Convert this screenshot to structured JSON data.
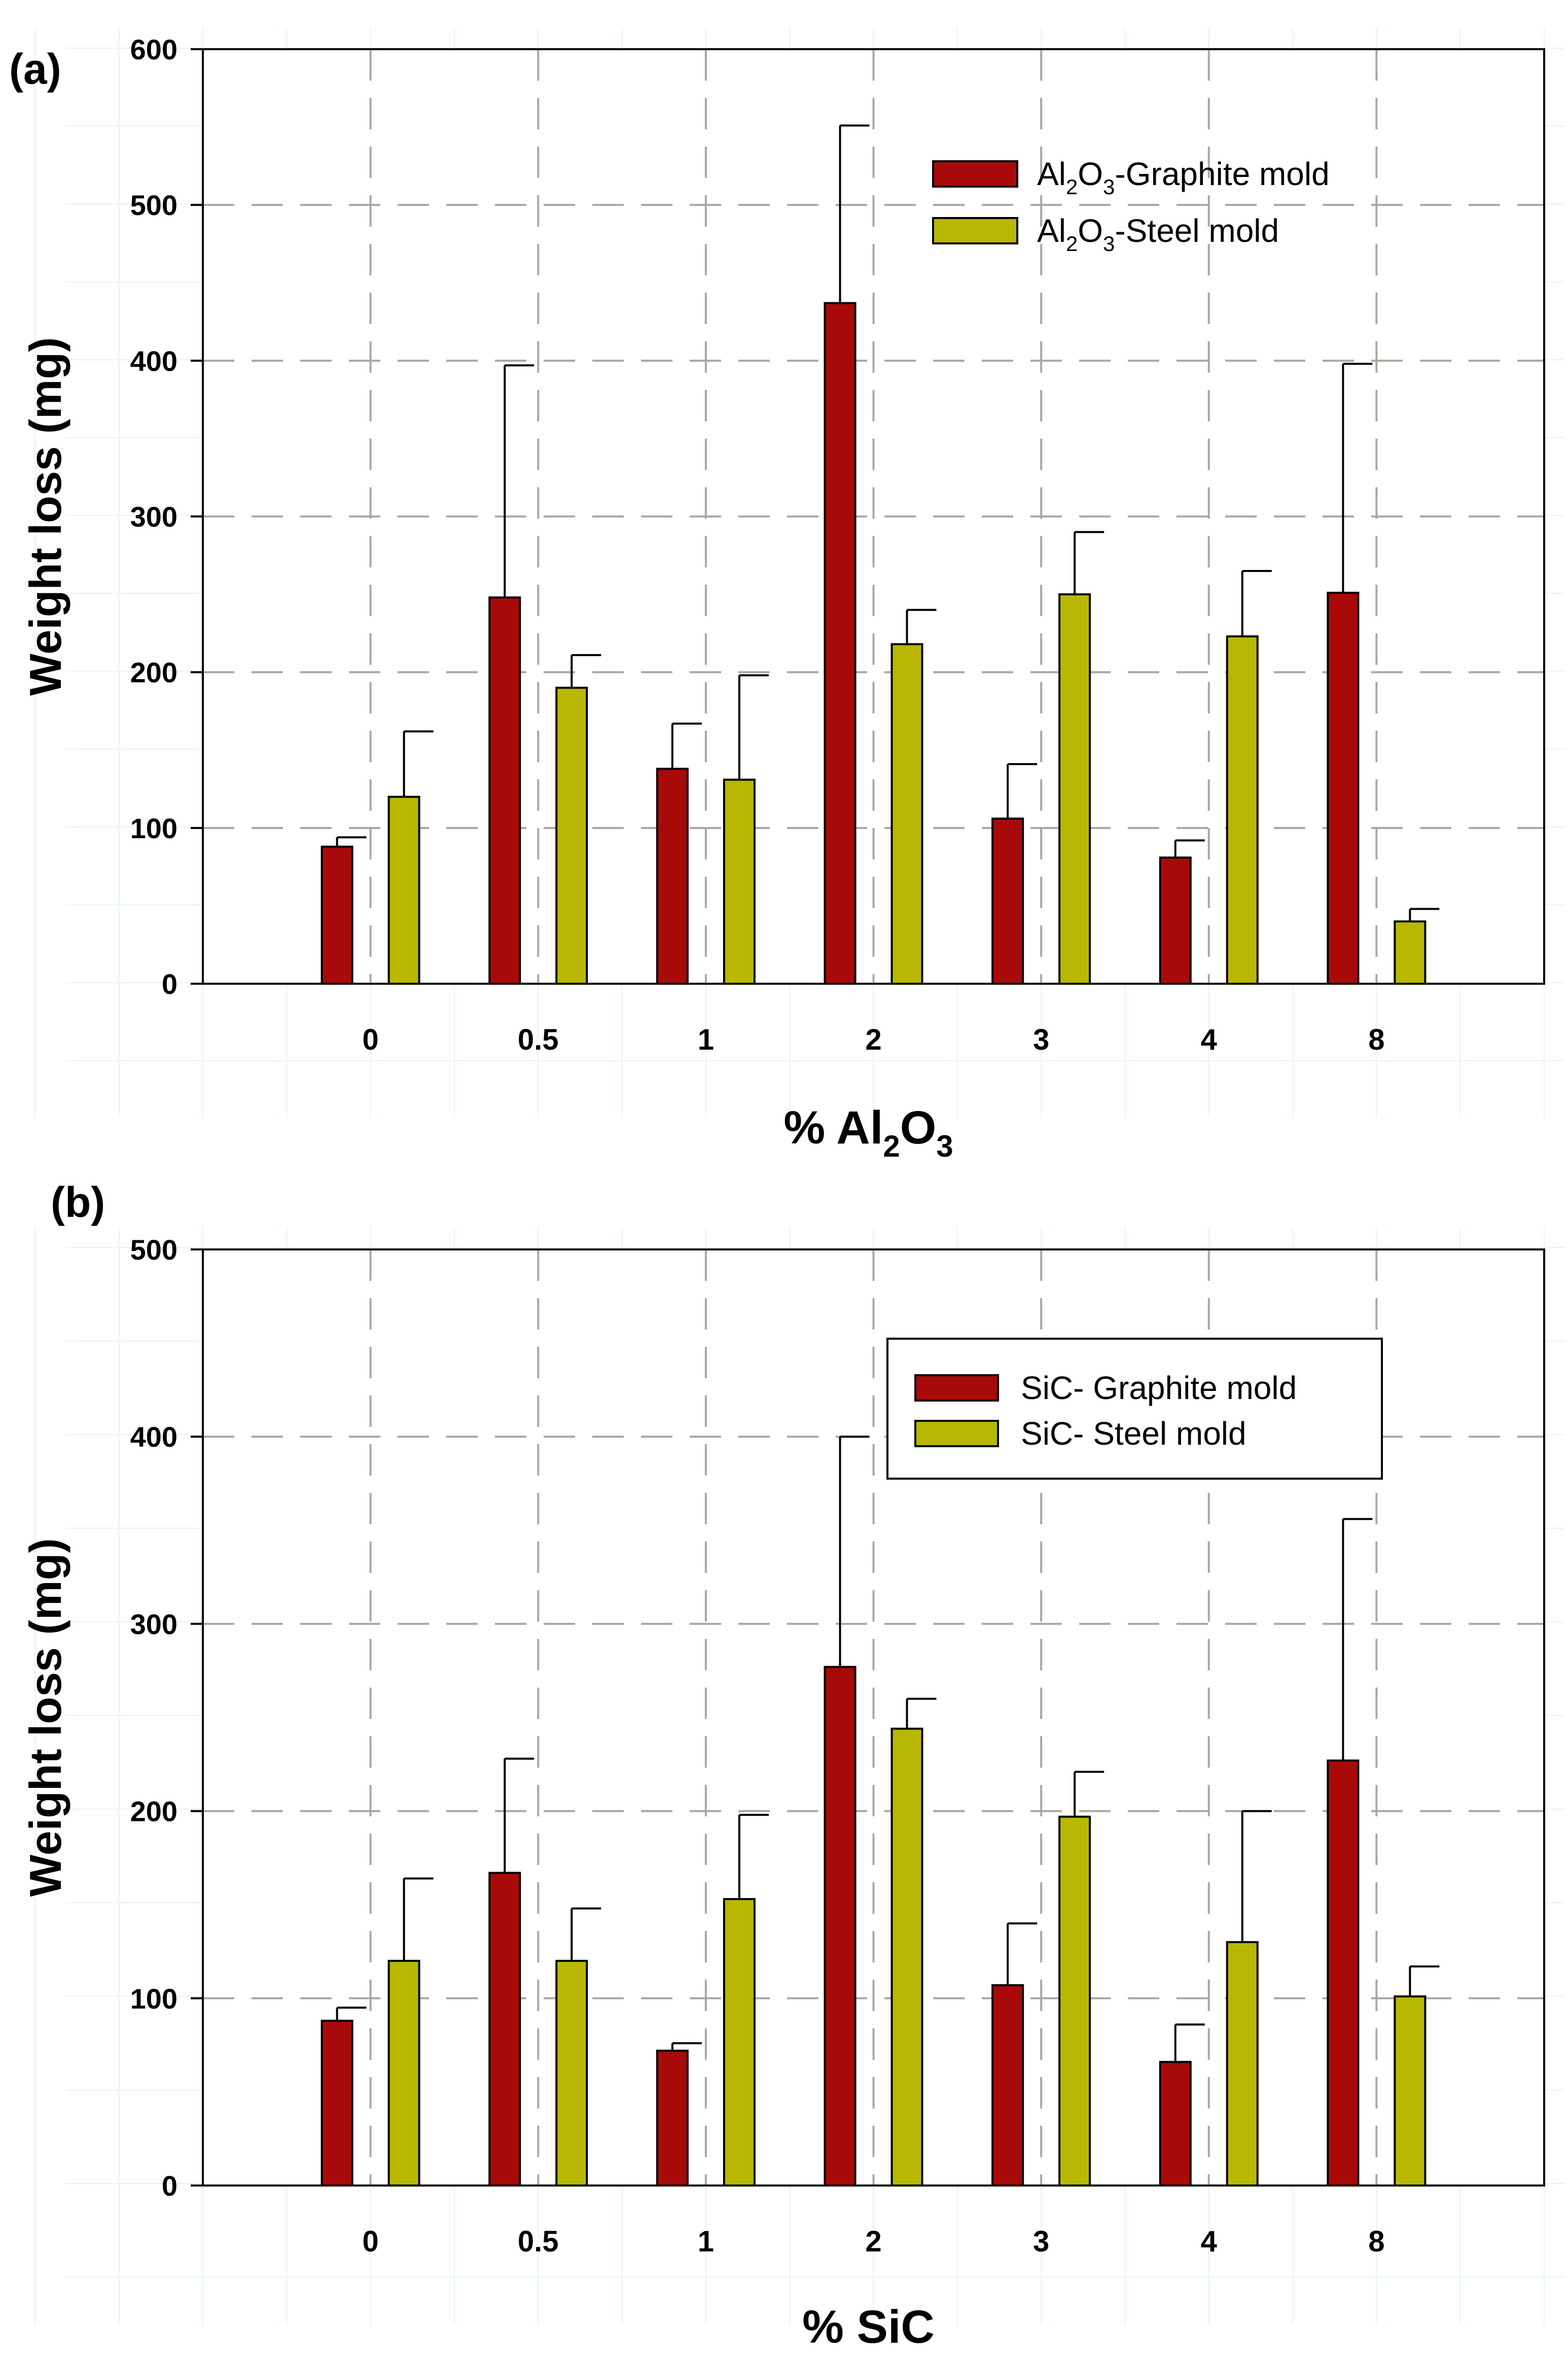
{
  "chart_data": [
    {
      "panel_label": "(a)",
      "type": "bar",
      "categories": [
        "0",
        "0.5",
        "1",
        "2",
        "3",
        "4",
        "8"
      ],
      "series": [
        {
          "name": "Al2O3-Graphite mold",
          "legend_parts": [
            "Al",
            "2",
            "O",
            "3",
            "-Graphite mold"
          ],
          "color": "#a80a0a",
          "values": [
            88,
            248,
            138,
            437,
            106,
            81,
            251
          ],
          "error_upper": [
            94,
            397,
            167,
            551,
            141,
            92,
            398
          ]
        },
        {
          "name": "Al2O3-Steel mold",
          "legend_parts": [
            "Al",
            "2",
            "O",
            "3",
            "-Steel mold"
          ],
          "color": "#b8b802",
          "values": [
            120,
            190,
            131,
            218,
            250,
            223,
            40
          ],
          "error_upper": [
            162,
            211,
            198,
            240,
            290,
            265,
            48
          ]
        }
      ],
      "xlabel": "% Al2O3",
      "xlabel_parts": [
        "% Al",
        "2",
        "O",
        "3"
      ],
      "ylabel": "Weight loss (mg)",
      "ylim": [
        0,
        600
      ],
      "yticks": [
        "0",
        "100",
        "200",
        "300",
        "400",
        "500",
        "600"
      ],
      "legend_boxed": false,
      "legend_position": "top-right",
      "grid": true
    },
    {
      "panel_label": "(b)",
      "type": "bar",
      "categories": [
        "0",
        "0.5",
        "1",
        "2",
        "3",
        "4",
        "8"
      ],
      "series": [
        {
          "name": "SiC- Graphite mold",
          "legend_parts": [
            "SiC- Graphite mold"
          ],
          "color": "#a80a0a",
          "values": [
            88,
            167,
            72,
            277,
            107,
            66,
            227
          ],
          "error_upper": [
            95,
            228,
            76,
            400,
            140,
            86,
            356
          ]
        },
        {
          "name": "SiC- Steel mold",
          "legend_parts": [
            "SiC- Steel mold"
          ],
          "color": "#b8b802",
          "values": [
            120,
            120,
            153,
            244,
            197,
            130,
            101
          ],
          "error_upper": [
            164,
            148,
            198,
            260,
            221,
            200,
            117
          ]
        }
      ],
      "xlabel": "% SiC",
      "xlabel_parts": [
        "% SiC"
      ],
      "ylabel": "Weight loss (mg)",
      "ylim": [
        0,
        500
      ],
      "yticks": [
        "0",
        "100",
        "200",
        "300",
        "400",
        "500"
      ],
      "legend_boxed": true,
      "legend_position": "top-right",
      "grid": true
    }
  ]
}
